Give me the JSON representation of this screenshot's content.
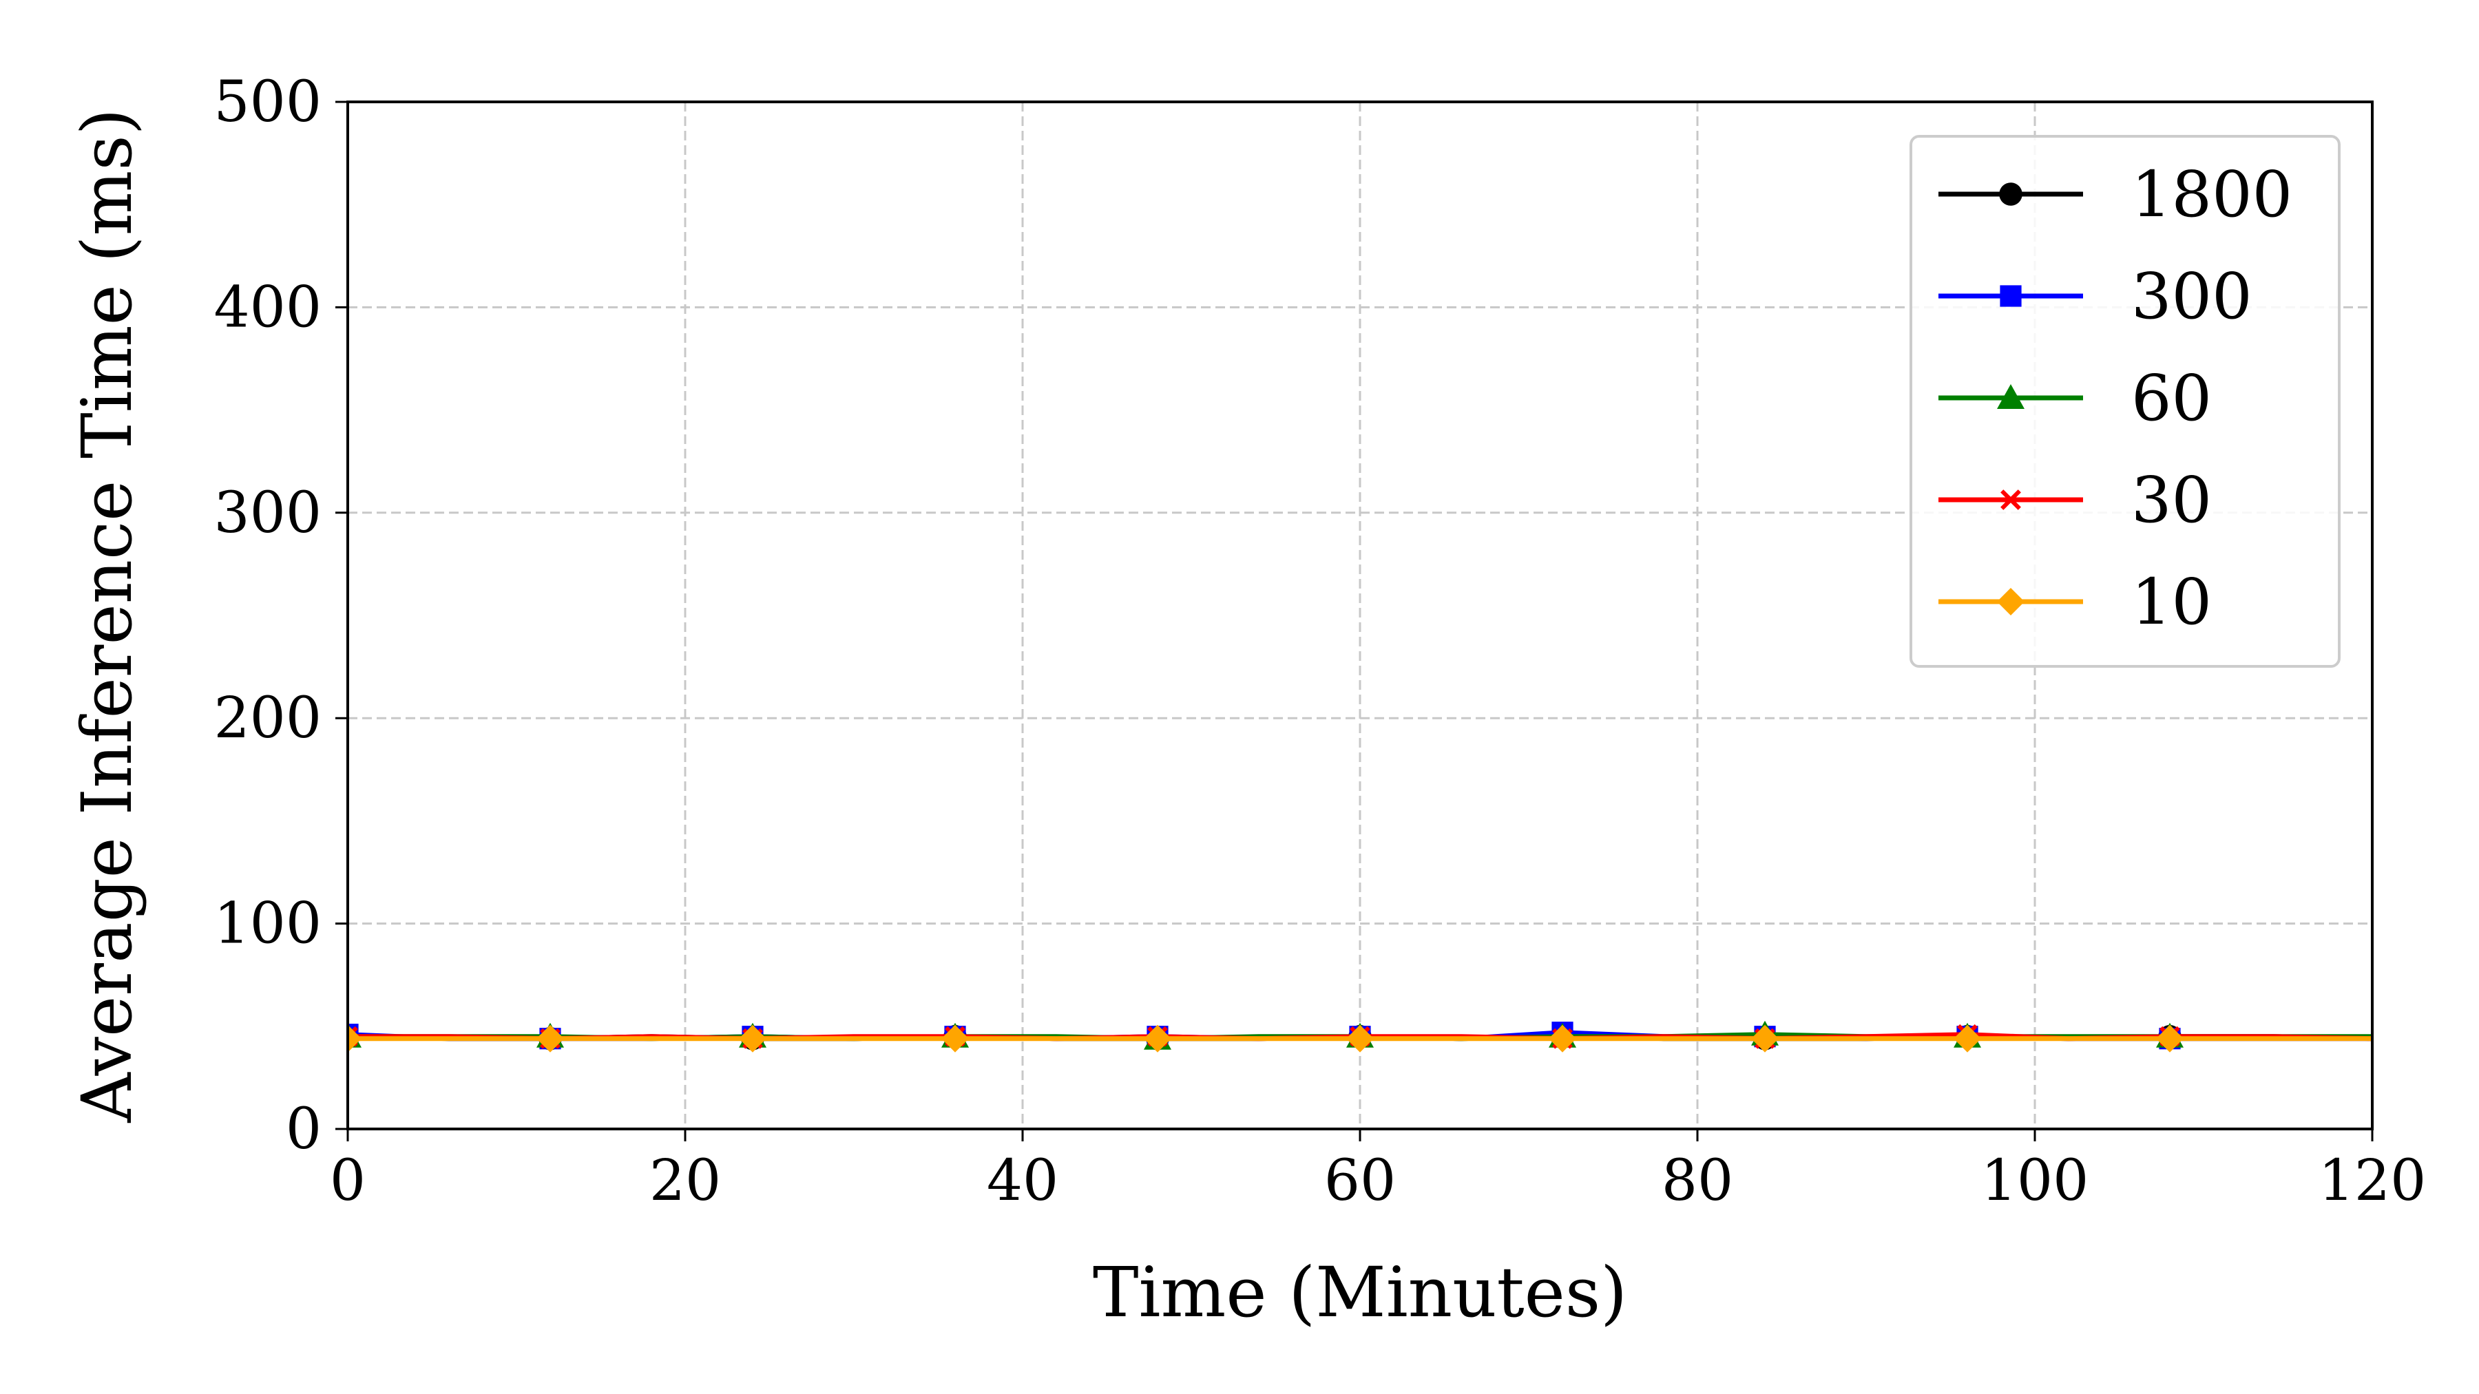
{
  "chart_data": {
    "type": "line",
    "title": "",
    "xlabel": "Time (Minutes)",
    "ylabel": "Average Inference Time (ms)",
    "xlim": [
      0,
      120
    ],
    "ylim": [
      0,
      500
    ],
    "xticks": [
      0,
      20,
      40,
      60,
      80,
      100,
      120
    ],
    "yticks": [
      0,
      100,
      200,
      300,
      400,
      500
    ],
    "grid": true,
    "grid_style": "dashed",
    "legend_position": "top-right",
    "marker_x": [
      0,
      12,
      24,
      36,
      48,
      60,
      72,
      84,
      96,
      108
    ],
    "series": [
      {
        "name": "1800",
        "color": "#000000",
        "marker": "circle",
        "x": [
          0,
          6,
          12,
          18,
          24,
          30,
          36,
          42,
          48,
          54,
          60,
          66,
          72,
          78,
          84,
          90,
          96,
          102,
          108,
          114,
          120
        ],
        "values": [
          45,
          44,
          44,
          45,
          44,
          44,
          45,
          44,
          44,
          44,
          45,
          44,
          45,
          44,
          44,
          44,
          45,
          44,
          45,
          45,
          44
        ]
      },
      {
        "name": "300",
        "color": "#0000ff",
        "marker": "square",
        "x": [
          0,
          6,
          12,
          18,
          24,
          30,
          36,
          42,
          48,
          54,
          60,
          66,
          72,
          78,
          84,
          90,
          96,
          102,
          108,
          114,
          120
        ],
        "values": [
          46,
          44,
          44,
          44,
          45,
          44,
          45,
          44,
          45,
          44,
          45,
          44,
          47,
          45,
          45,
          44,
          45,
          44,
          44,
          44,
          44
        ]
      },
      {
        "name": "60",
        "color": "#008000",
        "marker": "triangle",
        "x": [
          0,
          6,
          12,
          18,
          24,
          30,
          36,
          42,
          48,
          54,
          60,
          66,
          72,
          78,
          84,
          90,
          96,
          102,
          108,
          114,
          120
        ],
        "values": [
          45,
          45,
          45,
          44,
          45,
          44,
          45,
          45,
          44,
          45,
          45,
          44,
          45,
          45,
          46,
          45,
          45,
          45,
          45,
          45,
          45
        ]
      },
      {
        "name": "30",
        "color": "#ff0000",
        "marker": "x",
        "x": [
          0,
          6,
          12,
          18,
          24,
          30,
          36,
          42,
          48,
          54,
          60,
          66,
          72,
          78,
          84,
          90,
          96,
          102,
          108,
          114,
          120
        ],
        "values": [
          45,
          45,
          44,
          45,
          44,
          45,
          45,
          44,
          45,
          44,
          45,
          45,
          44,
          45,
          44,
          45,
          46,
          44,
          45,
          45,
          44
        ]
      },
      {
        "name": "10",
        "color": "#ffa500",
        "marker": "diamond",
        "x": [
          0,
          6,
          12,
          18,
          24,
          30,
          36,
          42,
          48,
          54,
          60,
          66,
          72,
          78,
          84,
          90,
          96,
          102,
          108,
          114,
          120
        ],
        "values": [
          44,
          44,
          44,
          44,
          44,
          44,
          44,
          44,
          44,
          44,
          44,
          44,
          44,
          44,
          44,
          44,
          44,
          44,
          44,
          44,
          44
        ]
      }
    ]
  }
}
